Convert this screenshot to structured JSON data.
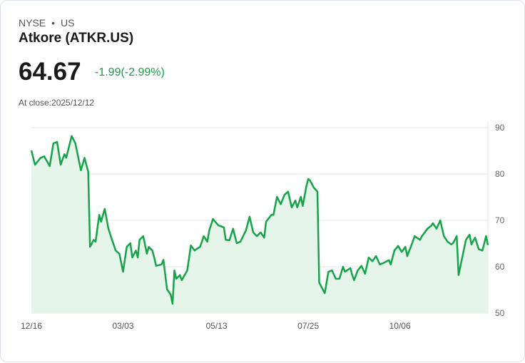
{
  "header": {
    "exchange": "NYSE",
    "separator": "•",
    "region": "US",
    "name": "Atkore (ATKR.US)",
    "price": "64.67",
    "change": "-1.99(-2.99%)",
    "close_label": "At close:2025/12/12"
  },
  "colors": {
    "line": "#16a34a",
    "fill": "#e6f5ea",
    "change": "#1a9e47"
  },
  "chart_data": {
    "type": "area",
    "title": "Atkore (ATKR.US)",
    "xlabel": "",
    "ylabel": "",
    "ylim": [
      50,
      90
    ],
    "xlim": [
      0,
      249
    ],
    "yticks": [
      90,
      80,
      70,
      60,
      50
    ],
    "xticks": [
      {
        "t": 0,
        "label": "12/16"
      },
      {
        "t": 50,
        "label": "03/03"
      },
      {
        "t": 101,
        "label": "05/13"
      },
      {
        "t": 151,
        "label": "07/25"
      },
      {
        "t": 201,
        "label": "10/06"
      }
    ],
    "grid": true,
    "t": [
      0,
      2,
      5,
      7,
      10,
      12,
      14,
      16,
      18,
      19,
      22,
      24,
      27,
      29,
      31,
      32,
      34,
      35,
      37,
      38,
      40,
      42,
      44,
      46,
      48,
      50,
      52,
      54,
      55,
      57,
      58,
      59,
      61,
      63,
      64,
      66,
      67,
      68,
      71,
      72,
      74,
      76,
      77,
      78,
      79,
      81,
      82,
      84,
      85,
      87,
      89,
      90,
      92,
      94,
      96,
      97,
      99,
      102,
      105,
      106,
      108,
      110,
      112,
      114,
      117,
      119,
      121,
      123,
      125,
      127,
      128,
      131,
      132,
      134,
      136,
      138,
      140,
      142,
      144,
      145,
      147,
      148,
      150,
      151,
      152,
      154,
      156,
      157,
      158,
      160,
      162,
      164,
      166,
      168,
      170,
      171,
      174,
      175,
      176,
      178,
      180,
      182,
      184,
      186,
      188,
      190,
      192,
      195,
      196,
      198,
      200,
      202,
      204,
      205,
      208,
      209,
      212,
      213,
      216,
      218,
      219,
      221,
      223,
      225,
      227,
      229,
      230,
      232,
      233,
      235,
      237,
      239,
      240,
      242,
      244,
      246,
      248,
      249
    ],
    "values": [
      85.1,
      82,
      83.5,
      83.8,
      81.7,
      86.6,
      86.9,
      82,
      84.3,
      83.5,
      88.2,
      86.6,
      80.8,
      83.5,
      80.5,
      64.3,
      65.8,
      65.4,
      71.2,
      69.7,
      72.5,
      68.2,
      65.8,
      63.5,
      62.8,
      58.9,
      64.3,
      65.1,
      62,
      63.5,
      62,
      65.8,
      66.6,
      62.8,
      64.3,
      63.5,
      62,
      60.2,
      60.5,
      61.5,
      55.1,
      54,
      52,
      59.2,
      57.4,
      58.2,
      57.1,
      58.5,
      59.2,
      64.6,
      63.5,
      63.8,
      64.3,
      66.6,
      65.4,
      67.8,
      70.3,
      68.9,
      68.5,
      65.8,
      65.7,
      68.2,
      65.1,
      65.4,
      67.8,
      70.8,
      67.4,
      66.6,
      67.4,
      66.3,
      69.7,
      71.2,
      71.2,
      75.1,
      73.5,
      75.5,
      76.2,
      72.8,
      74.3,
      72.8,
      75.1,
      73.1,
      77.4,
      78.9,
      78.6,
      77.1,
      76.2,
      56.6,
      55.8,
      54.3,
      58.9,
      59.2,
      57.4,
      57.4,
      60,
      58.9,
      59.7,
      58.2,
      57.1,
      59.2,
      60.2,
      58.5,
      62,
      61.2,
      62.3,
      60.5,
      60.8,
      61.4,
      60.5,
      63.5,
      64.5,
      63.2,
      64.3,
      62.3,
      65.4,
      66.6,
      65.8,
      66.6,
      68.2,
      68.8,
      69.4,
      68.2,
      70,
      66.6,
      65.4,
      64.8,
      65.1,
      66.6,
      58.2,
      62,
      65.8,
      66.9,
      64.8,
      66.3,
      63.8,
      63.5,
      66.6,
      64.67
    ]
  }
}
